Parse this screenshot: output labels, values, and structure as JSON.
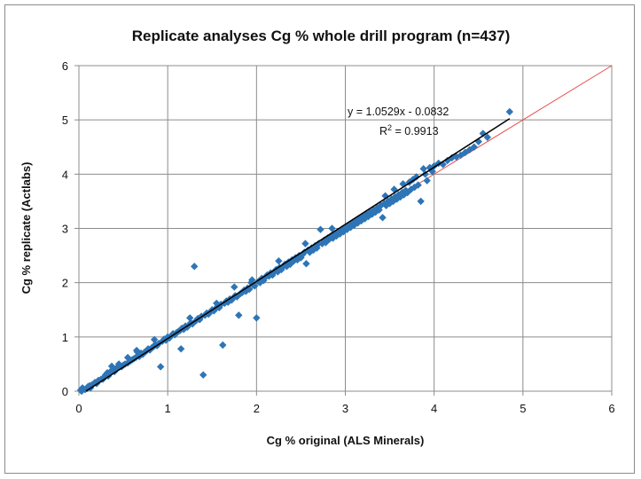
{
  "chart_data": {
    "type": "scatter",
    "title": "Replicate analyses Cg % whole drill program (n=437)",
    "xlabel": "Cg % original  (ALS Minerals)",
    "ylabel": "Cg % replicate  (Actlabs)",
    "xlim": [
      0,
      6
    ],
    "ylim": [
      0,
      6
    ],
    "xticks": [
      "0",
      "1",
      "2",
      "3",
      "4",
      "5",
      "6"
    ],
    "yticks": [
      "0",
      "1",
      "2",
      "3",
      "4",
      "5",
      "6"
    ],
    "grid": true,
    "legend": "none",
    "trendline": {
      "slope": 1.0529,
      "intercept": -0.0832,
      "equation": "y = 1.0529x - 0.0832",
      "r2_prefix": "R",
      "r2_exp": "2",
      "r2_value": " = 0.9913",
      "color": "#000000"
    },
    "reference_line": {
      "x": [
        0,
        6
      ],
      "y": [
        0,
        6
      ],
      "color": "#e84c4c"
    },
    "series": [
      {
        "color": "#2e75b6",
        "points": [
          [
            0.02,
            0.02
          ],
          [
            0.03,
            0.0
          ],
          [
            0.05,
            0.04
          ],
          [
            0.07,
            0.03
          ],
          [
            0.09,
            0.05
          ],
          [
            0.1,
            0.08
          ],
          [
            0.12,
            0.1
          ],
          [
            0.13,
            0.06
          ],
          [
            0.15,
            0.12
          ],
          [
            0.04,
            0.06
          ],
          [
            0.2,
            0.14
          ],
          [
            0.25,
            0.22
          ],
          [
            0.28,
            0.25
          ],
          [
            0.3,
            0.3
          ],
          [
            0.33,
            0.28
          ],
          [
            0.35,
            0.35
          ],
          [
            0.37,
            0.46
          ],
          [
            0.4,
            0.36
          ],
          [
            0.42,
            0.42
          ],
          [
            0.45,
            0.44
          ],
          [
            0.48,
            0.45
          ],
          [
            0.5,
            0.48
          ],
          [
            0.52,
            0.5
          ],
          [
            0.55,
            0.52
          ],
          [
            0.58,
            0.56
          ],
          [
            0.6,
            0.58
          ],
          [
            0.62,
            0.6
          ],
          [
            0.64,
            0.62
          ],
          [
            0.66,
            0.72
          ],
          [
            0.68,
            0.64
          ],
          [
            0.7,
            0.7
          ],
          [
            0.72,
            0.68
          ],
          [
            0.74,
            0.72
          ],
          [
            0.76,
            0.74
          ],
          [
            0.78,
            0.78
          ],
          [
            0.8,
            0.76
          ],
          [
            0.82,
            0.8
          ],
          [
            0.84,
            0.82
          ],
          [
            0.86,
            0.86
          ],
          [
            0.88,
            0.84
          ],
          [
            0.9,
            0.88
          ],
          [
            0.92,
            0.45
          ],
          [
            0.94,
            0.92
          ],
          [
            0.96,
            0.96
          ],
          [
            0.98,
            0.94
          ],
          [
            1.0,
            1.0
          ],
          [
            1.02,
            0.98
          ],
          [
            1.04,
            1.02
          ],
          [
            1.06,
            1.06
          ],
          [
            1.08,
            1.04
          ],
          [
            1.1,
            1.08
          ],
          [
            1.12,
            1.1
          ],
          [
            1.14,
            1.12
          ],
          [
            1.15,
            0.78
          ],
          [
            1.16,
            1.16
          ],
          [
            1.18,
            1.14
          ],
          [
            1.2,
            1.2
          ],
          [
            1.22,
            1.18
          ],
          [
            1.24,
            1.22
          ],
          [
            1.26,
            1.26
          ],
          [
            1.28,
            1.24
          ],
          [
            1.3,
            2.3
          ],
          [
            1.32,
            1.3
          ],
          [
            1.34,
            1.34
          ],
          [
            1.36,
            1.32
          ],
          [
            1.38,
            1.38
          ],
          [
            1.4,
            0.3
          ],
          [
            1.42,
            1.4
          ],
          [
            1.44,
            1.44
          ],
          [
            1.46,
            1.42
          ],
          [
            1.48,
            1.46
          ],
          [
            1.5,
            1.5
          ],
          [
            1.52,
            1.48
          ],
          [
            1.54,
            1.52
          ],
          [
            1.56,
            1.56
          ],
          [
            1.58,
            1.54
          ],
          [
            1.6,
            1.6
          ],
          [
            1.62,
            0.85
          ],
          [
            1.64,
            1.62
          ],
          [
            1.66,
            1.66
          ],
          [
            1.68,
            1.64
          ],
          [
            1.7,
            1.7
          ],
          [
            1.72,
            1.68
          ],
          [
            1.74,
            1.72
          ],
          [
            1.76,
            1.76
          ],
          [
            1.78,
            1.74
          ],
          [
            1.8,
            1.4
          ],
          [
            1.82,
            1.8
          ],
          [
            1.84,
            1.82
          ],
          [
            1.86,
            1.86
          ],
          [
            1.88,
            1.84
          ],
          [
            1.9,
            1.9
          ],
          [
            1.92,
            1.88
          ],
          [
            1.94,
            2.0
          ],
          [
            1.96,
            1.96
          ],
          [
            1.98,
            1.94
          ],
          [
            2.0,
            1.35
          ],
          [
            2.02,
            2.02
          ],
          [
            2.04,
            2.0
          ],
          [
            2.06,
            2.08
          ],
          [
            2.08,
            2.04
          ],
          [
            2.1,
            2.1
          ],
          [
            2.12,
            2.14
          ],
          [
            2.14,
            2.12
          ],
          [
            2.16,
            2.18
          ],
          [
            2.18,
            2.14
          ],
          [
            2.2,
            2.2
          ],
          [
            2.22,
            2.24
          ],
          [
            2.24,
            2.2
          ],
          [
            2.26,
            2.28
          ],
          [
            2.28,
            2.24
          ],
          [
            2.3,
            2.3
          ],
          [
            2.32,
            2.34
          ],
          [
            2.34,
            2.3
          ],
          [
            2.36,
            2.38
          ],
          [
            2.38,
            2.34
          ],
          [
            2.4,
            2.42
          ],
          [
            2.42,
            2.4
          ],
          [
            2.44,
            2.46
          ],
          [
            2.46,
            2.42
          ],
          [
            2.48,
            2.5
          ],
          [
            2.5,
            2.46
          ],
          [
            2.52,
            2.52
          ],
          [
            2.54,
            2.56
          ],
          [
            2.56,
            2.35
          ],
          [
            2.58,
            2.6
          ],
          [
            2.6,
            2.56
          ],
          [
            2.62,
            2.64
          ],
          [
            2.64,
            2.6
          ],
          [
            2.66,
            2.68
          ],
          [
            2.68,
            2.64
          ],
          [
            2.7,
            2.72
          ],
          [
            2.72,
            2.98
          ],
          [
            2.74,
            2.72
          ],
          [
            2.76,
            2.78
          ],
          [
            2.78,
            2.74
          ],
          [
            2.8,
            2.82
          ],
          [
            2.82,
            2.8
          ],
          [
            2.84,
            2.86
          ],
          [
            2.86,
            2.82
          ],
          [
            2.88,
            2.9
          ],
          [
            2.9,
            2.86
          ],
          [
            2.92,
            2.94
          ],
          [
            2.94,
            2.9
          ],
          [
            2.96,
            2.98
          ],
          [
            2.98,
            2.94
          ],
          [
            3.0,
            3.02
          ],
          [
            3.02,
            2.98
          ],
          [
            3.04,
            3.06
          ],
          [
            3.06,
            3.02
          ],
          [
            3.08,
            3.1
          ],
          [
            3.1,
            3.06
          ],
          [
            3.12,
            3.14
          ],
          [
            3.14,
            3.1
          ],
          [
            3.16,
            3.18
          ],
          [
            3.18,
            3.14
          ],
          [
            3.2,
            3.22
          ],
          [
            3.22,
            3.18
          ],
          [
            3.24,
            3.26
          ],
          [
            3.26,
            3.22
          ],
          [
            3.28,
            3.3
          ],
          [
            3.3,
            3.26
          ],
          [
            3.32,
            3.34
          ],
          [
            3.34,
            3.3
          ],
          [
            3.36,
            3.38
          ],
          [
            3.38,
            3.34
          ],
          [
            3.4,
            3.42
          ],
          [
            3.42,
            3.2
          ],
          [
            3.44,
            3.46
          ],
          [
            3.46,
            3.42
          ],
          [
            3.48,
            3.5
          ],
          [
            3.5,
            3.46
          ],
          [
            3.52,
            3.54
          ],
          [
            3.54,
            3.5
          ],
          [
            3.56,
            3.58
          ],
          [
            3.58,
            3.54
          ],
          [
            3.6,
            3.62
          ],
          [
            3.62,
            3.58
          ],
          [
            3.64,
            3.66
          ],
          [
            3.66,
            3.62
          ],
          [
            3.68,
            3.7
          ],
          [
            3.7,
            3.66
          ],
          [
            3.72,
            3.85
          ],
          [
            3.74,
            3.72
          ],
          [
            3.76,
            3.9
          ],
          [
            3.78,
            3.76
          ],
          [
            3.8,
            3.95
          ],
          [
            3.82,
            3.8
          ],
          [
            3.85,
            3.5
          ],
          [
            3.88,
            4.1
          ],
          [
            3.9,
            4.0
          ],
          [
            3.92,
            3.88
          ],
          [
            3.95,
            4.12
          ],
          [
            3.98,
            4.05
          ],
          [
            4.0,
            4.15
          ],
          [
            4.05,
            4.2
          ],
          [
            4.1,
            4.18
          ],
          [
            4.15,
            4.25
          ],
          [
            4.2,
            4.3
          ],
          [
            4.25,
            4.32
          ],
          [
            4.3,
            4.35
          ],
          [
            4.35,
            4.4
          ],
          [
            4.4,
            4.45
          ],
          [
            4.45,
            4.5
          ],
          [
            4.5,
            4.6
          ],
          [
            4.55,
            4.75
          ],
          [
            4.6,
            4.68
          ],
          [
            4.85,
            5.15
          ],
          [
            3.45,
            3.6
          ],
          [
            3.55,
            3.72
          ],
          [
            3.65,
            3.82
          ],
          [
            2.85,
            3.0
          ],
          [
            2.55,
            2.72
          ],
          [
            2.25,
            2.4
          ],
          [
            1.95,
            2.05
          ],
          [
            1.75,
            1.92
          ],
          [
            1.55,
            1.62
          ],
          [
            1.25,
            1.35
          ],
          [
            0.85,
            0.95
          ],
          [
            0.65,
            0.75
          ],
          [
            0.55,
            0.62
          ],
          [
            0.45,
            0.5
          ],
          [
            0.38,
            0.4
          ],
          [
            0.32,
            0.34
          ],
          [
            0.27,
            0.22
          ],
          [
            0.22,
            0.2
          ],
          [
            0.18,
            0.16
          ]
        ]
      }
    ]
  }
}
